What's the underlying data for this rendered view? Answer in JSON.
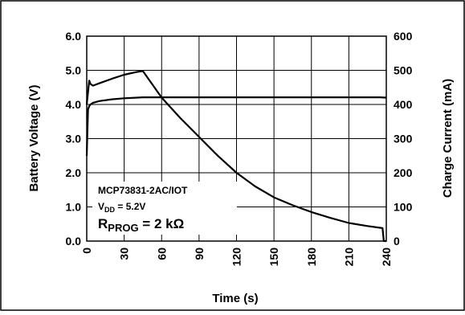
{
  "chart_data": {
    "type": "line",
    "title": "",
    "xlabel": "Time (s)",
    "ylabel_left": "Battery Voltage (V)",
    "ylabel_right": "Charge Current (mA)",
    "xlim": [
      0,
      240
    ],
    "ylim_left": [
      0,
      6
    ],
    "ylim_right": [
      0,
      600
    ],
    "x_ticks": [
      "0",
      "30",
      "60",
      "90",
      "120",
      "150",
      "180",
      "210",
      "240"
    ],
    "y_left_ticks": [
      "0.0",
      "1.0",
      "2.0",
      "3.0",
      "4.0",
      "5.0",
      "6.0"
    ],
    "y_right_ticks": [
      "0",
      "100",
      "200",
      "300",
      "400",
      "500",
      "600"
    ],
    "grid": true,
    "annotations": {
      "device": "MCP73831-2AC/IOT",
      "vdd_prefix": "V",
      "vdd_sub": "DD",
      "vdd_value": " = 5.2V",
      "rprog_prefix": "R",
      "rprog_sub": "PROG",
      "rprog_value": " = 2 kΩ"
    },
    "series": [
      {
        "axis": "left",
        "color": "#000000",
        "x": [
          0,
          1,
          2,
          3,
          5,
          10,
          20,
          30,
          45,
          60,
          90,
          120,
          150,
          180,
          210,
          235,
          240
        ],
        "y": [
          2.5,
          3.85,
          3.95,
          4.0,
          4.05,
          4.1,
          4.15,
          4.18,
          4.21,
          4.21,
          4.21,
          4.21,
          4.21,
          4.21,
          4.21,
          4.21,
          4.2
        ]
      },
      {
        "axis": "right",
        "color": "#000000",
        "x": [
          0,
          2,
          3,
          5,
          10,
          20,
          30,
          40,
          45,
          60,
          75,
          90,
          105,
          120,
          135,
          150,
          165,
          180,
          195,
          210,
          225,
          237,
          238,
          240
        ],
        "y": [
          400,
          470,
          460,
          455,
          462,
          475,
          487,
          495,
          498,
          420,
          360,
          305,
          250,
          200,
          160,
          128,
          105,
          85,
          68,
          53,
          44,
          38,
          0,
          0
        ]
      }
    ]
  }
}
